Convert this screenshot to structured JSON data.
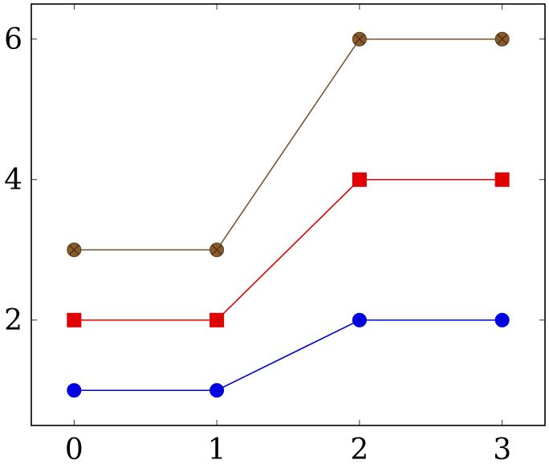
{
  "chart_data": {
    "type": "line",
    "title": "",
    "xlabel": "",
    "ylabel": "",
    "x": [
      0,
      1,
      2,
      3
    ],
    "xlim": [
      -0.3,
      3.3
    ],
    "ylim": [
      0.5,
      6.5
    ],
    "xticks": [
      0,
      1,
      2,
      3
    ],
    "yticks": [
      2,
      4,
      6
    ],
    "xtick_labels": [
      "0",
      "1",
      "2",
      "3"
    ],
    "ytick_labels": [
      "2",
      "4",
      "6"
    ],
    "grid": false,
    "legend": "none",
    "series": [
      {
        "values": [
          1,
          1,
          2,
          2
        ],
        "color": "#0000e0",
        "marker": "circle"
      },
      {
        "values": [
          2,
          2,
          4,
          4
        ],
        "color": "#e00000",
        "marker": "square"
      },
      {
        "values": [
          3,
          3,
          6,
          6
        ],
        "color": "#7a5533",
        "fill": "#8b5a2b",
        "marker": "circle-x"
      }
    ]
  }
}
